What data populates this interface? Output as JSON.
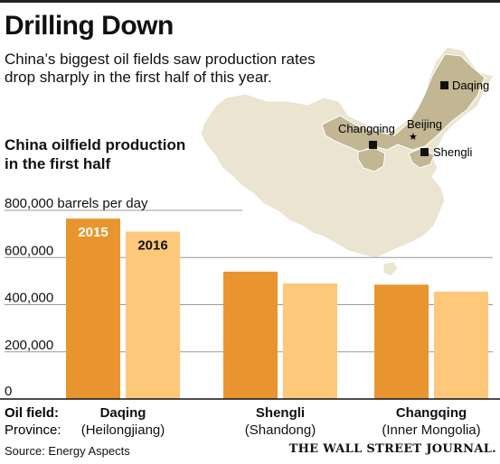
{
  "title": "Drilling Down",
  "subtitle": "China’s biggest oil fields saw production rates drop sharply in the first half of this year.",
  "chart_title_line1": "China oilfield production",
  "chart_title_line2": "in the first half",
  "source": "Source: Energy Aspects",
  "brand": "THE WALL STREET JOURNAL.",
  "row_labels": {
    "field": "Oil field:",
    "province": "Province:"
  },
  "colors": {
    "y2015": "#E8952F",
    "y2016": "#FDC87A",
    "map_region": "#EAE4D0",
    "map_highlight": "#C2B693",
    "map_stroke": "#FFFFFF"
  },
  "map": {
    "labels": {
      "daqing": "Daqing",
      "beijing": "Beijing",
      "changqing": "Changqing",
      "shengli": "Shengli"
    }
  },
  "chart_data": {
    "type": "bar",
    "ylabel": "barrels per day",
    "ylim": [
      0,
      800000
    ],
    "yticks": [
      0,
      200000,
      400000,
      600000,
      800000
    ],
    "ytick_labels": [
      "0",
      "200,000",
      "400,000",
      "600,000",
      "800,000"
    ],
    "grid": true,
    "categories": [
      "Daqing",
      "Shengli",
      "Changqing"
    ],
    "provinces": [
      "(Heilongjiang)",
      "(Shandong)",
      "(Inner Mongolia)"
    ],
    "series": [
      {
        "name": "2015",
        "values": [
          765000,
          540000,
          485000
        ]
      },
      {
        "name": "2016",
        "values": [
          710000,
          490000,
          455000
        ]
      }
    ]
  }
}
